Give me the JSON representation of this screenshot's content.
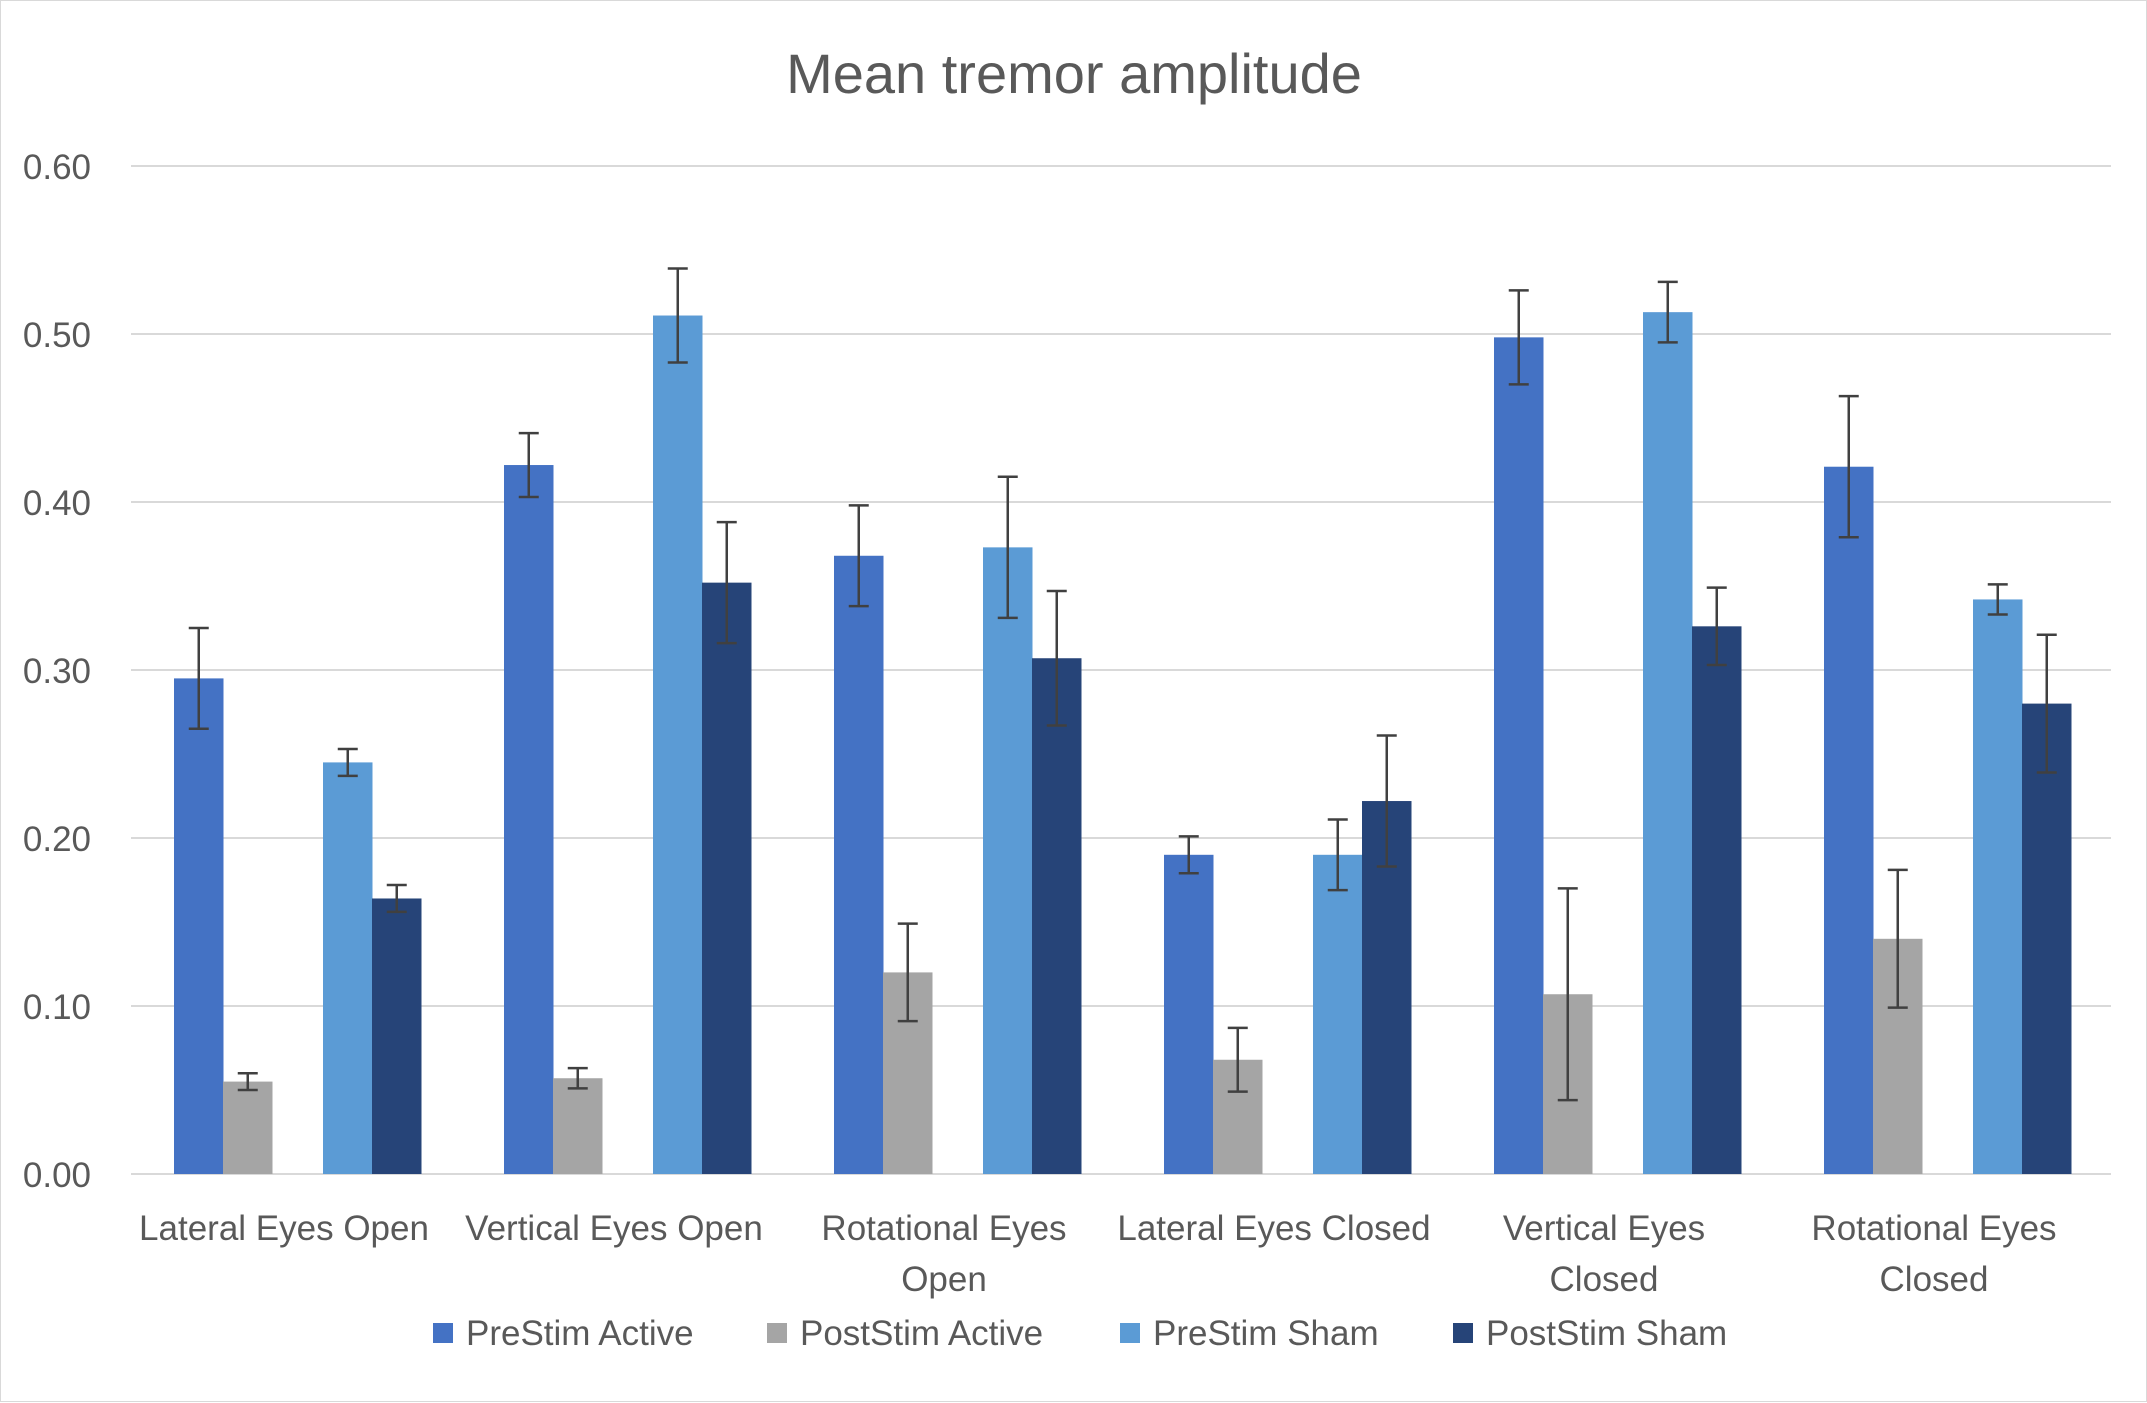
{
  "chart_data": {
    "type": "bar",
    "title": "Mean tremor amplitude",
    "xlabel": "",
    "ylabel": "",
    "ylim": [
      0,
      0.6
    ],
    "yticks": [
      "0.00",
      "0.10",
      "0.20",
      "0.30",
      "0.40",
      "0.50",
      "0.60"
    ],
    "grid": true,
    "legend_position": "bottom",
    "categories": [
      [
        "Lateral Eyes Open"
      ],
      [
        "Vertical Eyes Open"
      ],
      [
        "Rotational Eyes",
        "Open"
      ],
      [
        "Lateral Eyes Closed"
      ],
      [
        "Vertical Eyes",
        "Closed"
      ],
      [
        "Rotational Eyes",
        "Closed"
      ]
    ],
    "series": [
      {
        "name": "PreStim Active",
        "color": "#4472c4",
        "values": [
          0.295,
          0.422,
          0.368,
          0.19,
          0.498,
          0.421
        ],
        "error": [
          0.03,
          0.019,
          0.03,
          0.011,
          0.028,
          0.042
        ]
      },
      {
        "name": "PostStim Active",
        "color": "#a5a5a5",
        "values": [
          0.055,
          0.057,
          0.12,
          0.068,
          0.107,
          0.14
        ],
        "error": [
          0.005,
          0.006,
          0.029,
          0.019,
          0.063,
          0.041
        ]
      },
      {
        "name": "PreStim Sham",
        "color": "#5b9bd5",
        "values": [
          0.245,
          null,
          0.373,
          0.19,
          0.513,
          0.342
        ],
        "error": [
          0.008,
          null,
          0.042,
          0.021,
          0.018,
          0.009
        ]
      },
      {
        "name": "PostStim Sham",
        "color": "#264478",
        "values": [
          0.164,
          null,
          0.307,
          0.222,
          0.326,
          0.28
        ],
        "error": [
          0.008,
          null,
          0.04,
          0.039,
          0.023,
          0.041
        ]
      }
    ],
    "extra_bars": [
      {
        "category": 1,
        "series": 2,
        "value": 0.511,
        "error": 0.028
      },
      {
        "category": 1,
        "series": 3,
        "value": 0.352,
        "error": 0.036
      }
    ]
  },
  "colors": {
    "grid": "#d9d9d9",
    "text": "#595959",
    "errorbar": "#404040"
  }
}
